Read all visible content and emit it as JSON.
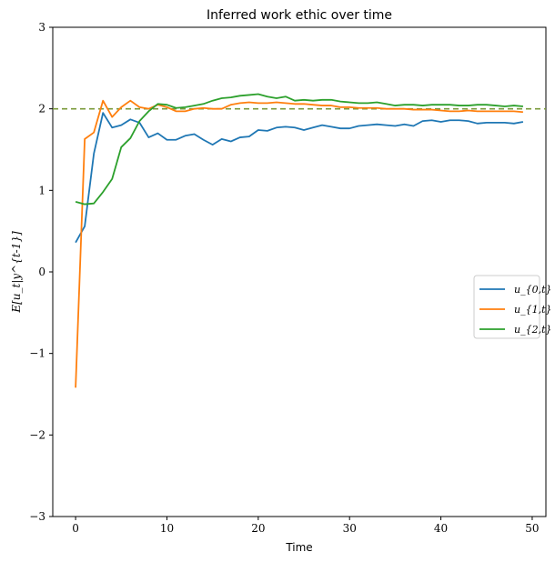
{
  "chart_data": {
    "type": "line",
    "title": "Inferred work ethic over time",
    "xlabel": "Time",
    "ylabel": "E[u_t|y^{t-1}]",
    "xlim": [
      -2.5,
      51.5
    ],
    "ylim": [
      -3,
      3
    ],
    "xticks": [
      0,
      10,
      20,
      30,
      40,
      50
    ],
    "yticks": [
      -3,
      -2,
      -1,
      0,
      1,
      2,
      3
    ],
    "ytick_labels": [
      "−3",
      "−2",
      "−1",
      "0",
      "1",
      "2",
      "3"
    ],
    "reference_line": {
      "y": 2.0,
      "color": "#7a9a3a",
      "style": "dashed"
    },
    "legend": {
      "position": "center-right"
    },
    "grid": false,
    "series": [
      {
        "name": "u_{0,t}",
        "color": "#1f77b4",
        "values": [
          0.36,
          0.56,
          1.45,
          1.95,
          1.77,
          1.8,
          1.87,
          1.83,
          1.65,
          1.7,
          1.62,
          1.62,
          1.67,
          1.69,
          1.62,
          1.56,
          1.63,
          1.6,
          1.65,
          1.66,
          1.74,
          1.73,
          1.77,
          1.78,
          1.77,
          1.74,
          1.77,
          1.8,
          1.78,
          1.76,
          1.76,
          1.79,
          1.8,
          1.81,
          1.8,
          1.79,
          1.81,
          1.79,
          1.85,
          1.86,
          1.84,
          1.86,
          1.86,
          1.85,
          1.82,
          1.83,
          1.83,
          1.83,
          1.82,
          1.84
        ]
      },
      {
        "name": "u_{1,t}",
        "color": "#ff7f0e",
        "values": [
          -1.42,
          1.63,
          1.71,
          2.1,
          1.9,
          2.02,
          2.1,
          2.02,
          2.0,
          2.05,
          2.02,
          1.97,
          1.97,
          2.0,
          2.01,
          2.0,
          2.0,
          2.05,
          2.07,
          2.08,
          2.07,
          2.07,
          2.08,
          2.07,
          2.06,
          2.06,
          2.05,
          2.04,
          2.04,
          2.02,
          2.02,
          2.01,
          2.01,
          2.01,
          2.0,
          2.0,
          2.0,
          1.99,
          1.99,
          1.99,
          1.98,
          1.97,
          1.97,
          1.98,
          1.97,
          1.97,
          1.97,
          1.97,
          1.97,
          1.96
        ]
      },
      {
        "name": "u_{2,t}",
        "color": "#2ca02c",
        "values": [
          0.86,
          0.83,
          0.84,
          0.98,
          1.14,
          1.53,
          1.64,
          1.85,
          1.97,
          2.06,
          2.05,
          2.01,
          2.02,
          2.04,
          2.06,
          2.1,
          2.13,
          2.14,
          2.16,
          2.17,
          2.18,
          2.15,
          2.13,
          2.15,
          2.1,
          2.11,
          2.1,
          2.11,
          2.11,
          2.09,
          2.08,
          2.07,
          2.07,
          2.08,
          2.06,
          2.04,
          2.05,
          2.05,
          2.04,
          2.05,
          2.05,
          2.05,
          2.04,
          2.04,
          2.05,
          2.05,
          2.04,
          2.03,
          2.04,
          2.03
        ]
      }
    ]
  }
}
